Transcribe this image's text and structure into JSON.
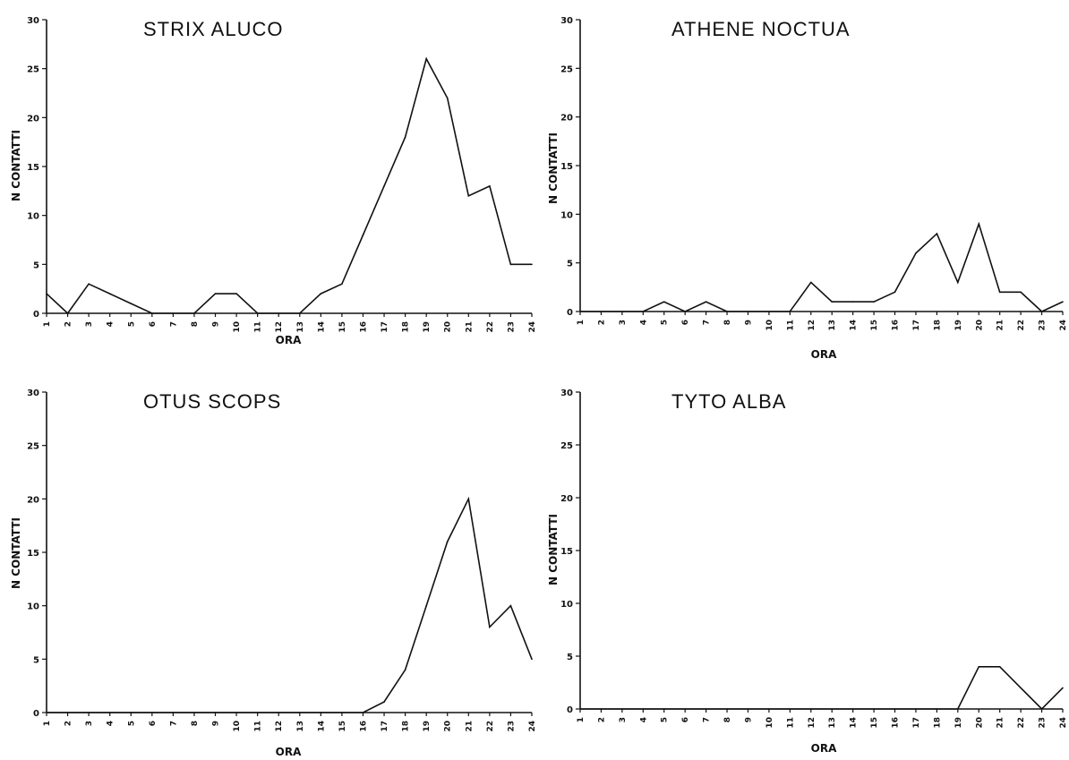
{
  "chart_data": [
    {
      "type": "line",
      "title": "STRIX ALUCO",
      "xlabel": "ORA",
      "ylabel": "N CONTATTI",
      "x": [
        1,
        2,
        3,
        4,
        5,
        6,
        7,
        8,
        9,
        10,
        11,
        12,
        13,
        14,
        15,
        16,
        17,
        18,
        19,
        20,
        21,
        22,
        23,
        24
      ],
      "values": [
        2,
        0,
        3,
        2,
        1,
        0,
        0,
        0,
        2,
        2,
        0,
        0,
        0,
        2,
        3,
        8,
        13,
        18,
        26,
        22,
        12,
        13,
        5,
        5
      ],
      "ylim": [
        0,
        30
      ],
      "yticks": [
        0,
        5,
        10,
        15,
        20,
        25,
        30
      ],
      "grid": false
    },
    {
      "type": "line",
      "title": "ATHENE NOCTUA",
      "xlabel": "ORA",
      "ylabel": "N CONTATTI",
      "x": [
        1,
        2,
        3,
        4,
        5,
        6,
        7,
        8,
        9,
        10,
        11,
        12,
        13,
        14,
        15,
        16,
        17,
        18,
        19,
        20,
        21,
        22,
        23,
        24
      ],
      "values": [
        0,
        0,
        0,
        0,
        1,
        0,
        1,
        0,
        0,
        0,
        0,
        3,
        1,
        1,
        1,
        2,
        6,
        8,
        3,
        9,
        2,
        2,
        0,
        1
      ],
      "ylim": [
        0,
        30
      ],
      "yticks": [
        0,
        5,
        10,
        15,
        20,
        25,
        30
      ],
      "grid": false
    },
    {
      "type": "line",
      "title": "OTUS SCOPS",
      "xlabel": "ORA",
      "ylabel": "N CONTATTI",
      "x": [
        1,
        2,
        3,
        4,
        5,
        6,
        7,
        8,
        9,
        10,
        11,
        12,
        13,
        14,
        15,
        16,
        17,
        18,
        19,
        20,
        21,
        22,
        23,
        24
      ],
      "values": [
        0,
        0,
        0,
        0,
        0,
        0,
        0,
        0,
        0,
        0,
        0,
        0,
        0,
        0,
        0,
        0,
        1,
        4,
        10,
        16,
        20,
        8,
        10,
        5
      ],
      "ylim": [
        0,
        30
      ],
      "yticks": [
        0,
        5,
        10,
        15,
        20,
        25,
        30
      ],
      "grid": false
    },
    {
      "type": "line",
      "title": "TYTO ALBA",
      "xlabel": "ORA",
      "ylabel": "N CONTATTI",
      "x": [
        1,
        2,
        3,
        4,
        5,
        6,
        7,
        8,
        9,
        10,
        11,
        12,
        13,
        14,
        15,
        16,
        17,
        18,
        19,
        20,
        21,
        22,
        23,
        24
      ],
      "values": [
        0,
        0,
        0,
        0,
        0,
        0,
        0,
        0,
        0,
        0,
        0,
        0,
        0,
        0,
        0,
        0,
        0,
        0,
        0,
        4,
        4,
        2,
        0,
        2
      ],
      "ylim": [
        0,
        30
      ],
      "yticks": [
        0,
        5,
        10,
        15,
        20,
        25,
        30
      ],
      "grid": false
    }
  ]
}
